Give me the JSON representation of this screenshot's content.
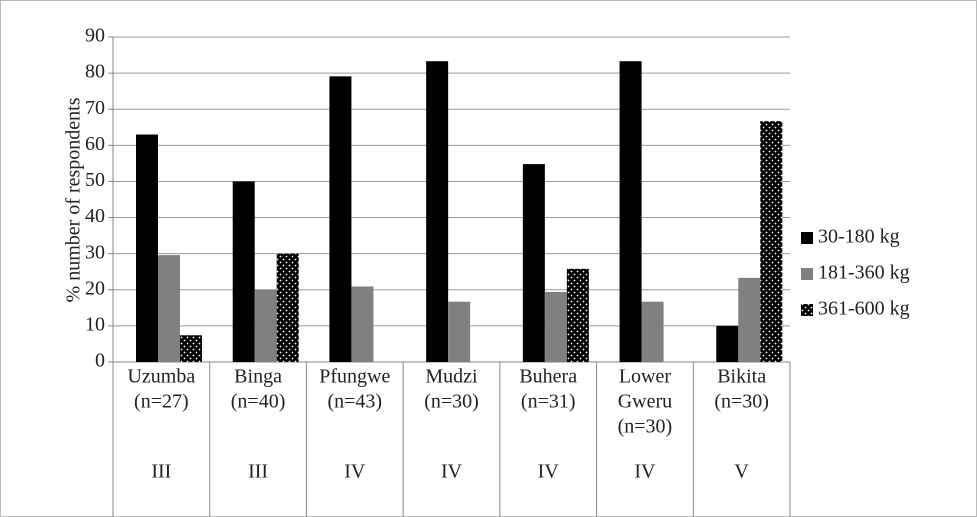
{
  "chart_data": {
    "type": "bar",
    "ylabel": "% number of respondents",
    "categories": [
      [
        "Uzumba",
        "(n=27)"
      ],
      [
        "Binga",
        "(n=40)"
      ],
      [
        "Pfungwe",
        "(n=43)"
      ],
      [
        "Mudzi",
        "(n=30)"
      ],
      [
        "Buhera",
        "(n=31)"
      ],
      [
        "Lower",
        "Gweru",
        "(n=30)"
      ],
      [
        "Bikita",
        "(n=30)"
      ]
    ],
    "category_groups": [
      "III",
      "III",
      "IV",
      "IV",
      "IV",
      "IV",
      "V"
    ],
    "series": [
      {
        "name": "30-180 kg",
        "color": "#000000",
        "values": [
          63,
          50,
          79.1,
          83.3,
          54.8,
          83.3,
          10
        ]
      },
      {
        "name": "181-360 kg",
        "color": "#808080",
        "values": [
          29.6,
          20,
          20.9,
          16.7,
          19.4,
          16.7,
          23.3
        ]
      },
      {
        "name": "361-600 kg",
        "color": "#000000",
        "pattern": "dots",
        "values": [
          7.4,
          30,
          0,
          0,
          25.8,
          0,
          66.7
        ]
      }
    ],
    "ylim": [
      0,
      90
    ],
    "yticks": [
      0,
      10,
      20,
      30,
      40,
      50,
      60,
      70,
      80,
      90
    ],
    "grid": true,
    "legend": "right"
  }
}
